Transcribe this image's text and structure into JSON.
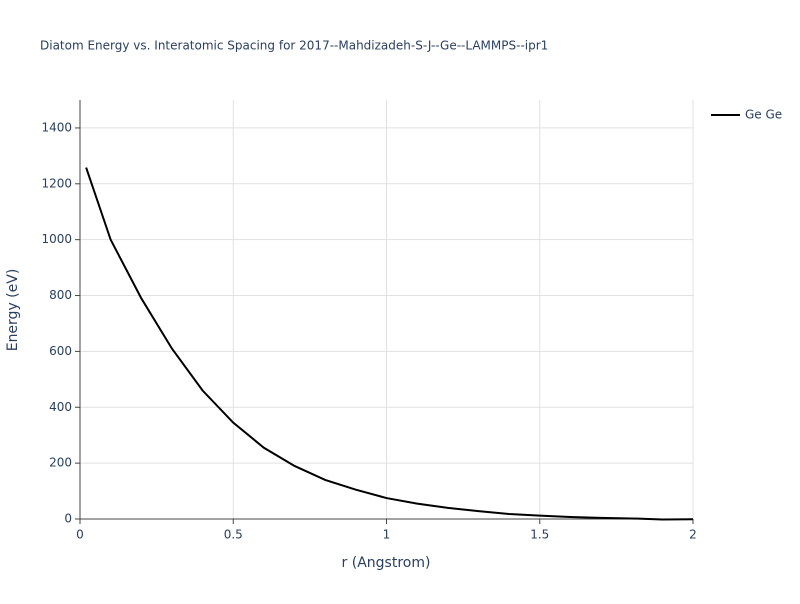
{
  "chart_data": {
    "type": "line",
    "title": "Diatom Energy vs. Interatomic Spacing for 2017--Mahdizadeh-S-J--Ge--LAMMPS--ipr1",
    "x_label": "r (Angstrom)",
    "y_label": "Energy (eV)",
    "x": [
      0.02,
      0.1,
      0.2,
      0.3,
      0.4,
      0.5,
      0.6,
      0.7,
      0.8,
      0.9,
      1.0,
      1.1,
      1.2,
      1.3,
      1.4,
      1.5,
      1.6,
      1.7,
      1.8,
      1.9,
      2.0
    ],
    "series": [
      {
        "name": "Ge Ge",
        "color": "#000000",
        "values": [
          1258,
          1000,
          790,
          610,
          460,
          345,
          255,
          190,
          140,
          105,
          75,
          55,
          40,
          28,
          18,
          12,
          7,
          4,
          2,
          -2,
          -1
        ]
      }
    ],
    "xlim": [
      0,
      2
    ],
    "xticks": [
      0,
      0.5,
      1,
      1.5,
      2
    ],
    "ylim": [
      0,
      1500
    ],
    "yticks": [
      0,
      200,
      400,
      600,
      800,
      1000,
      1200,
      1400
    ],
    "grid": true,
    "legend": "right"
  }
}
